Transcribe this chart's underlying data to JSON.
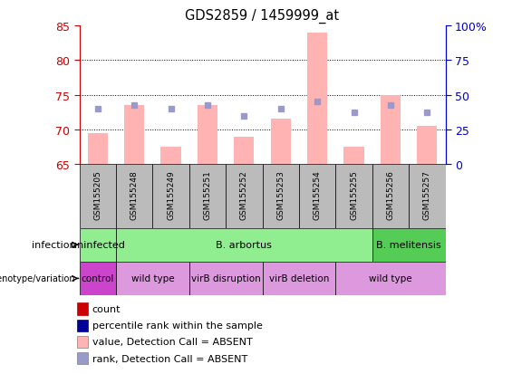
{
  "title": "GDS2859 / 1459999_at",
  "samples": [
    "GSM155205",
    "GSM155248",
    "GSM155249",
    "GSM155251",
    "GSM155252",
    "GSM155253",
    "GSM155254",
    "GSM155255",
    "GSM155256",
    "GSM155257"
  ],
  "bar_values": [
    69.5,
    73.5,
    67.5,
    73.5,
    69.0,
    71.5,
    84.0,
    67.5,
    75.0,
    70.5
  ],
  "rank_values": [
    73.0,
    73.5,
    73.0,
    73.5,
    72.0,
    73.0,
    74.0,
    72.5,
    73.5,
    72.5
  ],
  "ylim_left": [
    65,
    85
  ],
  "ylim_right": [
    0,
    100
  ],
  "yticks_left": [
    65,
    70,
    75,
    80,
    85
  ],
  "yticks_right": [
    0,
    25,
    50,
    75,
    100
  ],
  "ytick_labels_right": [
    "0",
    "25",
    "50",
    "75",
    "100%"
  ],
  "bar_color": "#FFB3B3",
  "rank_color": "#9999CC",
  "bar_bottom": 65,
  "inf_groups": [
    {
      "label": "uninfected",
      "start": 0,
      "end": 1,
      "color": "#90EE90"
    },
    {
      "label": "B. arbortus",
      "start": 1,
      "end": 8,
      "color": "#90EE90"
    },
    {
      "label": "B. melitensis",
      "start": 8,
      "end": 10,
      "color": "#55CC55"
    }
  ],
  "geno_groups": [
    {
      "label": "control",
      "start": 0,
      "end": 1,
      "color": "#CC44CC"
    },
    {
      "label": "wild type",
      "start": 1,
      "end": 3,
      "color": "#DD99DD"
    },
    {
      "label": "virB disruption",
      "start": 3,
      "end": 5,
      "color": "#DD99DD"
    },
    {
      "label": "virB deletion",
      "start": 5,
      "end": 7,
      "color": "#DD99DD"
    },
    {
      "label": "wild type",
      "start": 7,
      "end": 10,
      "color": "#DD99DD"
    }
  ],
  "legend_items": [
    {
      "label": "count",
      "color": "#CC0000"
    },
    {
      "label": "percentile rank within the sample",
      "color": "#000099"
    },
    {
      "label": "value, Detection Call = ABSENT",
      "color": "#FFB3B3"
    },
    {
      "label": "rank, Detection Call = ABSENT",
      "color": "#9999CC"
    }
  ],
  "left_axis_color": "#CC0000",
  "right_axis_color": "#0000CC",
  "sample_bg_color": "#BBBBBB",
  "grid_yticks": [
    70,
    75,
    80
  ]
}
